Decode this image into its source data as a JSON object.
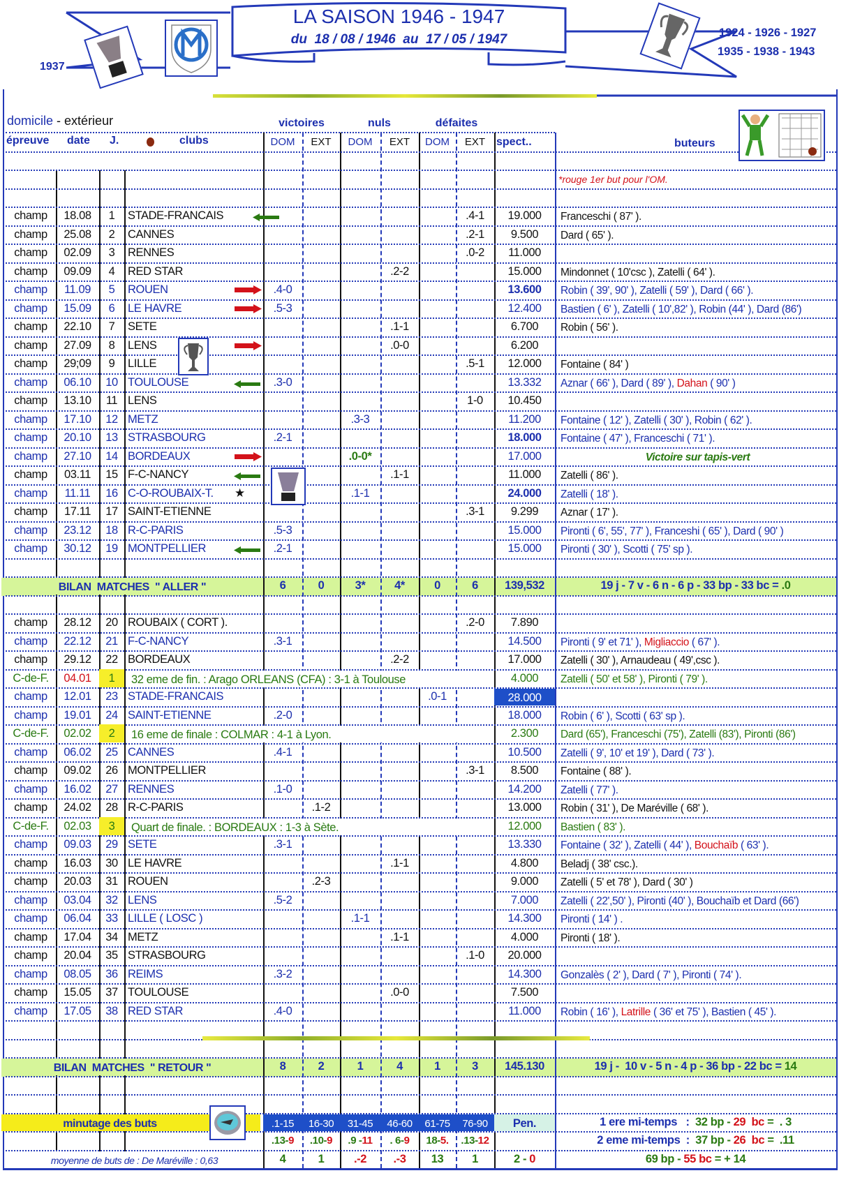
{
  "header": {
    "title": "LA SAISON 1946 - 1947",
    "subtitle": "du  18 / 08 / 1946  au  17 / 05 / 1947",
    "left_year": "1937",
    "right_years_1": "1924 - 1926 - 1927",
    "right_years_2": "1935 - 1938 - 1943",
    "brand_color": "#1c2fae"
  },
  "legend": {
    "home": "domicile",
    "away": "- extérieur"
  },
  "columns": {
    "groups": {
      "victoires": "victoires",
      "nuls": "nuls",
      "defaites": "défaites"
    },
    "epreuve": "épreuve",
    "date": "date",
    "j": "J.",
    "clubs": "clubs",
    "dom": "DOM",
    "ext": "EXT",
    "spect": "spect..",
    "buteurs": "buteurs"
  },
  "note": "*rouge 1er but pour l'OM.",
  "colors": {
    "home": "#1c2fae",
    "away": "#111111",
    "cup": "#2a7a12",
    "red": "#d3121a",
    "bilan": "#d6f59a",
    "minutage": "#f5ec1a",
    "minute_cell": "#1e4fc8"
  },
  "aller": [
    {
      "ep": "champ",
      "date": "18.08",
      "j": "1",
      "club": "STADE-FRANCAIS",
      "side": "away",
      "res": "de",
      "score": ".4-1",
      "spect": "19.000",
      "icon": "arrow-left-green",
      "buteurs": [
        [
          "Franceschi ( 87' )."
        ]
      ]
    },
    {
      "ep": "champ",
      "date": "25.08",
      "j": "2",
      "club": "CANNES",
      "side": "away",
      "res": "de",
      "score": ".2-1",
      "spect": "9.500",
      "buteurs": [
        [
          "Dard ( 65' )."
        ]
      ]
    },
    {
      "ep": "champ",
      "date": "02.09",
      "j": "3",
      "club": "RENNES",
      "side": "away",
      "res": "de",
      "score": ".0-2",
      "spect": "11.000",
      "buteurs": []
    },
    {
      "ep": "champ",
      "date": "09.09",
      "j": "4",
      "club": "RED STAR",
      "side": "away",
      "res": "ne",
      "score": ".2-2",
      "spect": "15.000",
      "buteurs": [
        [
          "Mindonnet ( 10'csc ), Zatelli ( 64' )."
        ]
      ]
    },
    {
      "ep": "champ",
      "date": "11.09",
      "j": "5",
      "club": "ROUEN",
      "side": "home",
      "res": "vd",
      "score": ".4-0",
      "spect": "13.600",
      "spect_bold": true,
      "icon": "arrow-right-red",
      "buteurs": [
        [
          "Robin ( 39', 90' ), Zatelli ( 59' ), Dard ( 66' )."
        ]
      ]
    },
    {
      "ep": "champ",
      "date": "15.09",
      "j": "6",
      "club": "LE HAVRE",
      "side": "home",
      "res": "vd",
      "score": ".5-3",
      "spect": "12.400",
      "icon": "arrow-right-red",
      "buteurs": [
        [
          "Bastien ( 6' ), Zatelli ( 10',82' ), Robin (44' ), Dard (86')"
        ]
      ]
    },
    {
      "ep": "champ",
      "date": "22.10",
      "j": "7",
      "club": "SETE",
      "side": "away",
      "res": "ne",
      "score": ".1-1",
      "spect": "6.700",
      "buteurs": [
        [
          "Robin ( 56' )."
        ]
      ]
    },
    {
      "ep": "champ",
      "date": "27.09",
      "j": "8",
      "club": "LENS",
      "side": "away",
      "res": "ne",
      "score": ".0-0",
      "spect": "6.200",
      "icon": "arrow-right-red",
      "buteurs": []
    },
    {
      "ep": "champ",
      "date": "29;09",
      "j": "9",
      "club": "LILLE",
      "side": "away",
      "res": "de",
      "score": ".5-1",
      "spect": "12.000",
      "buteurs": [
        [
          "Fontaine ( 84' )"
        ]
      ]
    },
    {
      "ep": "champ",
      "date": "06.10",
      "j": "10",
      "club": "TOULOUSE",
      "side": "home",
      "res": "vd",
      "score": ".3-0",
      "spect": "13.332",
      "icon": "arrow-left-green",
      "buteurs": [
        [
          "Aznar ( 66' ), Dard ( 89' ), "
        ],
        [
          "Dahan",
          "red"
        ],
        [
          " ( 90' )"
        ]
      ]
    },
    {
      "ep": "champ",
      "date": "13.10",
      "j": "11",
      "club": "LENS",
      "side": "away",
      "res": "de",
      "score": "1-0",
      "spect": "10.450",
      "buteurs": []
    },
    {
      "ep": "champ",
      "date": "17.10",
      "j": "12",
      "club": "METZ",
      "side": "home",
      "res": "nd",
      "score": ".3-3",
      "spect": "11.200",
      "buteurs": [
        [
          "Fontaine ( 12' ), Zatelli ( 30' ), Robin ( 62' )."
        ]
      ]
    },
    {
      "ep": "champ",
      "date": "20.10",
      "j": "13",
      "club": "STRASBOURG",
      "side": "home",
      "res": "vd",
      "score": ".2-1",
      "spect": "18.000",
      "spect_bold": true,
      "buteurs": [
        [
          "Fontaine ( 47' ), Franceschi ( 71' )."
        ]
      ]
    },
    {
      "ep": "champ",
      "date": "27.10",
      "j": "14",
      "club": "BORDEAUX",
      "side": "home",
      "res": "nd",
      "score": ".0-0*",
      "score_green": true,
      "spect": "17.000",
      "icon": "arrow-right-red",
      "buteurs_center": "Victoire sur tapis-vert",
      "buteurs": []
    },
    {
      "ep": "champ",
      "date": "03.11",
      "j": "15",
      "club": "F-C-NANCY",
      "side": "away",
      "res": "ne",
      "score": ".1-1",
      "spect": "11.000",
      "icon": "arrow-left-green",
      "buteurs": [
        [
          "Zatelli ( 86' )."
        ]
      ]
    },
    {
      "ep": "champ",
      "date": "11.11",
      "j": "16",
      "club": "C-O-ROUBAIX-T.",
      "side": "home",
      "res": "nd",
      "score": ".1-1",
      "spect": "24.000",
      "spect_bold": true,
      "icon": "star",
      "buteurs": [
        [
          "Zatelli ( 18' )."
        ]
      ]
    },
    {
      "ep": "champ",
      "date": "17.11",
      "j": "17",
      "club": "SAINT-ETIENNE",
      "side": "away",
      "res": "de",
      "score": ".3-1",
      "spect": "9.299",
      "buteurs": [
        [
          "Aznar ( 17' )."
        ]
      ]
    },
    {
      "ep": "champ",
      "date": "23.12",
      "j": "18",
      "club": "R-C-PARIS",
      "side": "home",
      "res": "vd",
      "score": ".5-3",
      "spect": "15.000",
      "buteurs": [
        [
          "Pironti ( 6', 55', 77' ), Franceshi ( 65' ), Dard ( 90' )"
        ]
      ]
    },
    {
      "ep": "champ",
      "date": "30.12",
      "j": "19",
      "club": "MONTPELLIER",
      "side": "home",
      "res": "vd",
      "score": ".2-1",
      "spect": "15.000",
      "icon": "arrow-left-green",
      "buteurs": [
        [
          "Pironti ( 30' ), Scotti ( 75' sp )."
        ]
      ]
    }
  ],
  "bilan_aller": {
    "label": "BILAN  MATCHES  \" ALLER \"",
    "values": [
      "6",
      "0",
      "3*",
      "4*",
      "0",
      "6"
    ],
    "spect": "139,532",
    "summary": "19 j - 7 v - 6 n - 6 p - 33 bp - 33 bc = ",
    "diff": ".0"
  },
  "retour": [
    {
      "ep": "champ",
      "date": "28.12",
      "j": "20",
      "club": "ROUBAIX ( CORT ).",
      "side": "away",
      "res": "de",
      "score": ".2-0",
      "spect": "7.890",
      "buteurs": []
    },
    {
      "ep": "champ",
      "date": "22.12",
      "j": "21",
      "club": "F-C-NANCY",
      "side": "home",
      "res": "vd",
      "score": ".3-1",
      "spect": "14.500",
      "buteurs": [
        [
          "Pironti ( 9' et 71' ), "
        ],
        [
          "Migliaccio",
          "red"
        ],
        [
          " ( 67' )."
        ]
      ]
    },
    {
      "ep": "champ",
      "date": "29.12",
      "j": "22",
      "club": "BORDEAUX",
      "side": "away",
      "res": "ne",
      "score": ".2-2",
      "spect": "17.000",
      "buteurs": [
        [
          "Zatelli ( 30' ), Arnaudeau ( 49',csc )."
        ]
      ]
    },
    {
      "cup": true,
      "ep": "C-de-F.",
      "date": "04.01",
      "date_red": true,
      "j": "1",
      "desc": "32 eme de fin. : Arago ORLEANS (CFA) : 3-1 à Toulouse",
      "spect": "4.000",
      "buteurs": [
        [
          "Zatelli ( 50' et 58' ), Pironti ( 79' )."
        ]
      ]
    },
    {
      "ep": "champ",
      "date": "12.01",
      "j": "23",
      "club": "STADE-FRANCAIS",
      "side": "home",
      "res": "dd",
      "score": ".0-1",
      "spect": "28.000",
      "spect_highlight": true,
      "buteurs": []
    },
    {
      "ep": "champ",
      "date": "19.01",
      "j": "24",
      "club": "SAINT-ETIENNE",
      "side": "home",
      "res": "vd",
      "score": ".2-0",
      "spect": "18.000",
      "buteurs": [
        [
          "Robin ( 6' ), Scotti ( 63' sp )."
        ]
      ]
    },
    {
      "cup": true,
      "ep": "C-de-F.",
      "date": "02.02",
      "j": "2",
      "desc": "16 eme de finale : COLMAR : 4-1 à Lyon.",
      "spect": "2.300",
      "buteurs": [
        [
          "Dard (65'),  Franceschi (75'), Zatelli (83'), Pironti (86')"
        ]
      ]
    },
    {
      "ep": "champ",
      "date": "06.02",
      "j": "25",
      "club": "CANNES",
      "side": "home",
      "res": "vd",
      "score": ".4-1",
      "spect": "10.500",
      "buteurs": [
        [
          "Zatelli ( 9', 10' et 19' ), Dard ( 73' )."
        ]
      ]
    },
    {
      "ep": "champ",
      "date": "09.02",
      "j": "26",
      "club": "MONTPELLIER",
      "side": "away",
      "res": "de",
      "score": ".3-1",
      "spect": "8.500",
      "buteurs": [
        [
          "Fontaine ( 88' )."
        ]
      ]
    },
    {
      "ep": "champ",
      "date": "16.02",
      "j": "27",
      "club": "RENNES",
      "side": "home",
      "res": "vd",
      "score": ".1-0",
      "spect": "14.200",
      "buteurs": [
        [
          "Zatelli ( 77' )."
        ]
      ]
    },
    {
      "ep": "champ",
      "date": "24.02",
      "j": "28",
      "club": "R-C-PARIS",
      "side": "away",
      "res": "ve",
      "score": ".1-2",
      "spect": "13.000",
      "buteurs": [
        [
          "Robin ( 31' ), De Maréville ( 68' )."
        ]
      ]
    },
    {
      "cup": true,
      "ep": "C-de-F.",
      "date": "02.03",
      "j": "3",
      "desc": "Quart de finale. : BORDEAUX : 1-3 à Sète.",
      "spect": "12.000",
      "buteurs": [
        [
          "Bastien ( 83' )."
        ]
      ]
    },
    {
      "ep": "champ",
      "date": "09.03",
      "j": "29",
      "club": "SETE",
      "side": "home",
      "res": "vd",
      "score": ".3-1",
      "spect": "13.330",
      "buteurs": [
        [
          "Fontaine ( 32' ), Zatelli ( 44' ), "
        ],
        [
          "Bouchaïb",
          "red"
        ],
        [
          " ( 63' )."
        ]
      ]
    },
    {
      "ep": "champ",
      "date": "16.03",
      "j": "30",
      "club": "LE HAVRE",
      "side": "away",
      "res": "ne",
      "score": ".1-1",
      "spect": "4.800",
      "buteurs": [
        [
          "Beladj ( 38' csc.)."
        ]
      ]
    },
    {
      "ep": "champ",
      "date": "20.03",
      "j": "31",
      "club": "ROUEN",
      "side": "away",
      "res": "ve",
      "score": ".2-3",
      "spect": "9.000",
      "buteurs": [
        [
          "Zatelli ( 5' et 78' ), Dard ( 30' )"
        ]
      ]
    },
    {
      "ep": "champ",
      "date": "03.04",
      "j": "32",
      "club": "LENS",
      "side": "home",
      "res": "vd",
      "score": ".5-2",
      "spect": "7.000",
      "buteurs": [
        [
          "Zatelli ( 22',50' ), Pironti (40' ), Bouchaïb et Dard (66')"
        ]
      ]
    },
    {
      "ep": "champ",
      "date": "06.04",
      "j": "33",
      "club": "LILLE ( LOSC )",
      "side": "home",
      "res": "nd",
      "score": ".1-1",
      "spect": "14.300",
      "buteurs": [
        [
          "Pironti ( 14' ) ."
        ]
      ]
    },
    {
      "ep": "champ",
      "date": "17.04",
      "j": "34",
      "club": "METZ",
      "side": "away",
      "res": "ne",
      "score": ".1-1",
      "spect": "4.000",
      "buteurs": [
        [
          "Pironti ( 18' )."
        ]
      ]
    },
    {
      "ep": "champ",
      "date": "20.04",
      "j": "35",
      "club": "STRASBOURG",
      "side": "away",
      "res": "de",
      "score": ".1-0",
      "spect": "20.000",
      "buteurs": []
    },
    {
      "ep": "champ",
      "date": "08.05",
      "j": "36",
      "club": "REIMS",
      "side": "home",
      "res": "vd",
      "score": ".3-2",
      "spect": "14.300",
      "buteurs": [
        [
          "Gonzalès ( 2' ), Dard ( 7' ), Pironti ( 74' )."
        ]
      ]
    },
    {
      "ep": "champ",
      "date": "15.05",
      "j": "37",
      "club": "TOULOUSE",
      "side": "away",
      "res": "ne",
      "score": ".0-0",
      "spect": "7.500",
      "buteurs": []
    },
    {
      "ep": "champ",
      "date": "17.05",
      "j": "38",
      "club": "RED STAR",
      "side": "home",
      "res": "vd",
      "score": ".4-0",
      "spect": "11.000",
      "buteurs": [
        [
          "Robin ( 16' ), "
        ],
        [
          "Latrille",
          "red"
        ],
        [
          " ( 36' et 75' ), Bastien ( 45' )."
        ]
      ]
    }
  ],
  "bilan_retour": {
    "label": "BILAN  MATCHES  \" RETOUR \"",
    "values": [
      "8",
      "2",
      "1",
      "4",
      "1",
      "3"
    ],
    "spect": "145.130",
    "summary": "19 j -  10 v - 5 n - 4 p - 36 bp - 22 bc = ",
    "diff": "14"
  },
  "minutage": {
    "label": "minutage des buts",
    "periods": [
      ".1-15",
      "16-30",
      "31-45",
      "46-60",
      "61-75",
      "76-90"
    ],
    "pen_label": "Pen.",
    "scored": [
      ".13-",
      ".10-",
      ".9 -",
      ". 6-",
      "18-",
      ".13-"
    ],
    "conceded": [
      "9",
      "9",
      "11",
      "9",
      "5.",
      "12"
    ],
    "diffs": [
      [
        "4",
        "green"
      ],
      [
        "1",
        "green"
      ],
      [
        ".-2",
        "red"
      ],
      [
        ".-3",
        "red"
      ],
      [
        "13",
        "green"
      ],
      [
        "1",
        "green"
      ]
    ],
    "pen_for": "2",
    "pen_against": "0",
    "average": "moyenne de buts de : De Maréville : 0,63",
    "half1": {
      "label": "1 ere mi-temps   :",
      "bp": "32 bp",
      "bc": "29  bc",
      "eq": "=  . 3"
    },
    "half2": {
      "label": "2 eme mi-temps  :",
      "bp": "37 bp",
      "bc": "26  bc",
      "eq": "=  .11"
    },
    "total": {
      "bp": "69 bp",
      "bc": "55 bc",
      "eq": "= + 14"
    }
  }
}
